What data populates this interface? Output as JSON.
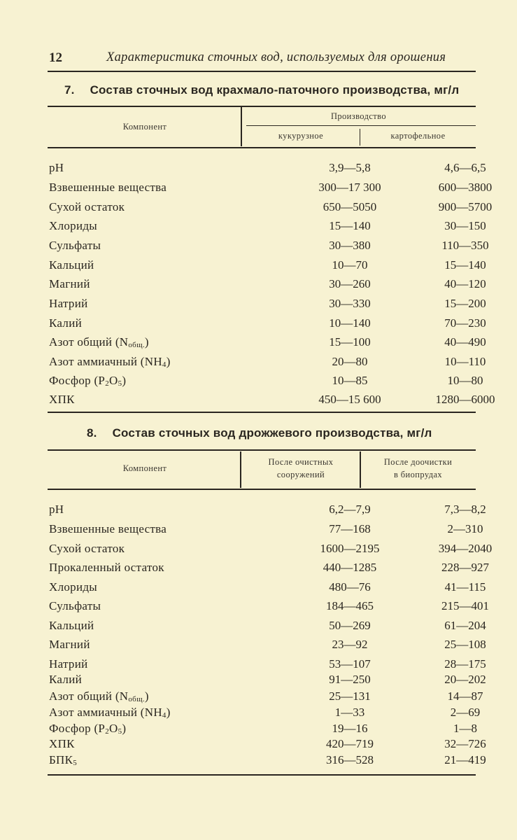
{
  "header": {
    "page_number": "12",
    "running_title": "Характеристика сточных вод, используемых для орошения"
  },
  "table7": {
    "number": "7.",
    "title": "Состав сточных вод крахмало-паточного производства, мг/л",
    "col_component": "Компонент",
    "col_group": "Производство",
    "col_1": "кукурузное",
    "col_2": "картофельное",
    "rows": [
      {
        "label": "pH",
        "sub": "",
        "tail": "",
        "v1": "3,9—5,8",
        "v2": "4,6—6,5"
      },
      {
        "label": "Взвешенные вещества",
        "sub": "",
        "tail": "",
        "v1": "300—17 300",
        "v2": "600—3800"
      },
      {
        "label": "Сухой остаток",
        "sub": "",
        "tail": "",
        "v1": "650—5050",
        "v2": "900—5700"
      },
      {
        "label": "Хлориды",
        "sub": "",
        "tail": "",
        "v1": "15—140",
        "v2": "30—150"
      },
      {
        "label": "Сульфаты",
        "sub": "",
        "tail": "",
        "v1": "30—380",
        "v2": "110—350"
      },
      {
        "label": "Кальций",
        "sub": "",
        "tail": "",
        "v1": "10—70",
        "v2": "15—140"
      },
      {
        "label": "Магний",
        "sub": "",
        "tail": "",
        "v1": "30—260",
        "v2": "40—120"
      },
      {
        "label": "Натрий",
        "sub": "",
        "tail": "",
        "v1": "30—330",
        "v2": "15—200"
      },
      {
        "label": "Калий",
        "sub": "",
        "tail": "",
        "v1": "10—140",
        "v2": "70—230"
      },
      {
        "label": "Азот общий (N",
        "sub": "общ.",
        "tail": ")",
        "v1": "15—100",
        "v2": "40—490"
      },
      {
        "label": "Азот аммиачный (NH",
        "sub": "4",
        "tail": ")",
        "v1": "20—80",
        "v2": "10—110"
      },
      {
        "label": "Фосфор (P",
        "sub": "2",
        "tail": "O",
        "sub2": "5",
        "tail2": ")",
        "v1": "10—85",
        "v2": "10—80"
      },
      {
        "label": "ХПК",
        "sub": "",
        "tail": "",
        "v1": "450—15 600",
        "v2": "1280—6000"
      }
    ]
  },
  "table8": {
    "number": "8.",
    "title": "Состав сточных вод дрожжевого производства, мг/л",
    "col_component": "Компонент",
    "col_1_line1": "После очистных",
    "col_1_line2": "сооружений",
    "col_2_line1": "После доочистки",
    "col_2_line2": "в биопрудах",
    "rows": [
      {
        "label": "pH",
        "sub": "",
        "tail": "",
        "v1": "6,2—7,9",
        "v2": "7,3—8,2"
      },
      {
        "label": "Взвешенные вещества",
        "sub": "",
        "tail": "",
        "v1": "77—168",
        "v2": "2—310"
      },
      {
        "label": "Сухой остаток",
        "sub": "",
        "tail": "",
        "v1": "1600—2195",
        "v2": "394—2040"
      },
      {
        "label": "Прокаленный остаток",
        "sub": "",
        "tail": "",
        "v1": "440—1285",
        "v2": "228—927"
      },
      {
        "label": "Хлориды",
        "sub": "",
        "tail": "",
        "v1": "480—76",
        "v2": "41—115"
      },
      {
        "label": "Сульфаты",
        "sub": "",
        "tail": "",
        "v1": "184—465",
        "v2": "215—401"
      },
      {
        "label": "Кальций",
        "sub": "",
        "tail": "",
        "v1": "50—269",
        "v2": "61—204"
      },
      {
        "label": "Магний",
        "sub": "",
        "tail": "",
        "v1": "23—92",
        "v2": "25—108"
      },
      {
        "label": "Натрий",
        "sub": "",
        "tail": "",
        "v1": "53—107",
        "v2": "28—175"
      },
      {
        "label": "Калий",
        "sub": "",
        "tail": "",
        "v1": "91—250",
        "v2": "20—202"
      },
      {
        "label": "Азот общий (N",
        "sub": "общ.",
        "tail": ")",
        "v1": "25—131",
        "v2": "14—87"
      },
      {
        "label": "Азот аммиачный (NH",
        "sub": "4",
        "tail": ")",
        "v1": "1—33",
        "v2": "2—69"
      },
      {
        "label": "Фосфор (P",
        "sub": "2",
        "tail": "O",
        "sub2": "5",
        "tail2": ")",
        "v1": "19—16",
        "v2": "1—8"
      },
      {
        "label": "ХПК",
        "sub": "",
        "tail": "",
        "v1": "420—719",
        "v2": "32—726"
      },
      {
        "label": "БПК",
        "sub": "5",
        "tail": "",
        "v1": "316—528",
        "v2": "21—419"
      }
    ]
  }
}
